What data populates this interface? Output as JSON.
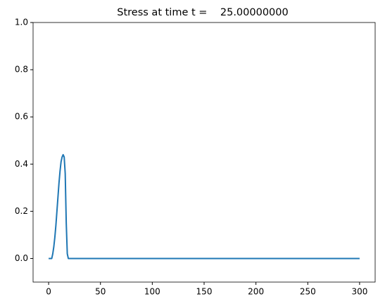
{
  "chart_data": {
    "type": "line",
    "title": "Stress at time t =    25.00000000",
    "x": [
      0,
      2,
      3,
      4,
      5,
      6,
      7,
      8,
      9,
      10,
      11,
      12,
      13,
      14,
      15,
      16,
      17,
      18,
      19,
      20,
      25,
      300
    ],
    "series": [
      {
        "color": "#1f77b4",
        "values": [
          0,
          0,
          0,
          0.02,
          0.05,
          0.09,
          0.14,
          0.2,
          0.26,
          0.32,
          0.37,
          0.41,
          0.43,
          0.44,
          0.43,
          0.36,
          0.15,
          0.02,
          0,
          0,
          0,
          0
        ]
      }
    ],
    "xlim": [
      -15,
      315
    ],
    "xticks": [
      0,
      50,
      100,
      150,
      200,
      250,
      300
    ],
    "ylim": [
      -0.1,
      1.0
    ],
    "yticks": [
      {
        "value": 0,
        "label": "0.0"
      },
      {
        "value": 0.2,
        "label": "0.2"
      },
      {
        "value": 0.4,
        "label": "0.4"
      },
      {
        "value": 0.6,
        "label": "0.6"
      },
      {
        "value": 0.8,
        "label": "0.8"
      },
      {
        "value": 1.0,
        "label": "1.0"
      }
    ]
  }
}
